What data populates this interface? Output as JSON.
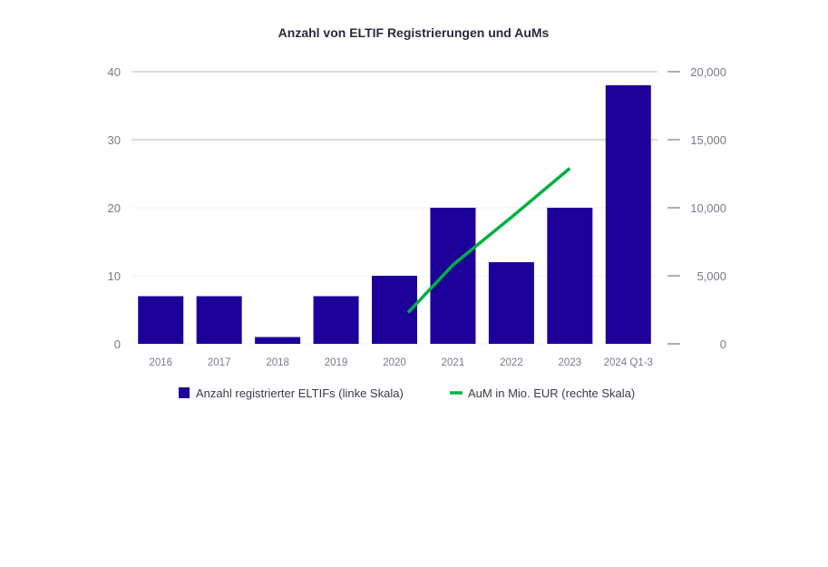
{
  "chart_data": {
    "type": "bar",
    "title": "Anzahl von ELTIF Registrierungen und AuMs",
    "categories": [
      "2016",
      "2017",
      "2018",
      "2019",
      "2020",
      "2021",
      "2022",
      "2023",
      "2024 Q1-3"
    ],
    "series": [
      {
        "name": "Anzahl registrierter ELTIFs (linke Skala)",
        "type": "bar",
        "axis": "left",
        "color": "#1c0099",
        "values": [
          7,
          7,
          1,
          7,
          10,
          20,
          12,
          20,
          38
        ]
      },
      {
        "name": "AuM in Mio. EUR (rechte Skala)",
        "type": "line",
        "axis": "right",
        "color": "#00b140",
        "values": [
          null,
          null,
          null,
          null,
          2300,
          5800,
          9300,
          12900,
          null
        ]
      }
    ],
    "y_left": {
      "range": [
        0,
        40
      ],
      "ticks": [
        "0",
        "10",
        "20",
        "30",
        "40"
      ]
    },
    "y_right": {
      "range": [
        0,
        20000
      ],
      "ticks": [
        "0",
        "5,000",
        "10,000",
        "15,000",
        "20,000"
      ]
    },
    "grid": true,
    "legend": "bottom"
  }
}
